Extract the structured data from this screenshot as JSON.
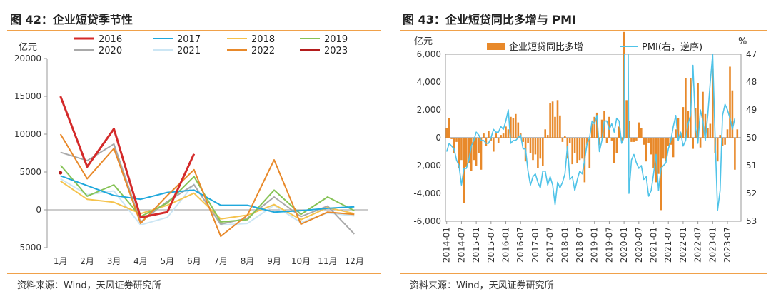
{
  "chart_data": [
    {
      "type": "line",
      "title": "图 42：企业短贷季节性",
      "ylabel": "亿元",
      "ylim": [
        -5000,
        20000
      ],
      "yticks": [
        -5000,
        0,
        5000,
        10000,
        15000,
        20000
      ],
      "categories": [
        "1月",
        "2月",
        "3月",
        "4月",
        "5月",
        "6月",
        "7月",
        "8月",
        "9月",
        "10月",
        "11月",
        "12月"
      ],
      "source": "资料来源：Wind，天风证券研究所",
      "series": [
        {
          "name": "2016",
          "color": "#d42a2a",
          "values": [
            15000,
            5700,
            10700,
            -1000,
            -300,
            7400,
            null,
            null,
            null,
            null,
            null,
            null
          ]
        },
        {
          "name": "2017",
          "color": "#1fa8dc",
          "values": [
            4500,
            3200,
            1900,
            1400,
            2300,
            2600,
            600,
            600,
            -300,
            -100,
            200,
            400
          ]
        },
        {
          "name": "2018",
          "color": "#f5c34d",
          "values": [
            3800,
            1400,
            1000,
            -500,
            600,
            2200,
            -1200,
            -700,
            700,
            -1300,
            300,
            -500
          ]
        },
        {
          "name": "2019",
          "color": "#86c356",
          "values": [
            5900,
            1800,
            3300,
            -900,
            900,
            4400,
            -1600,
            -1300,
            2600,
            -600,
            1700,
            -100
          ]
        },
        {
          "name": "2020",
          "color": "#a9a9a9",
          "values": [
            7600,
            6500,
            8700,
            -1600,
            1100,
            3300,
            -1900,
            -1100,
            1700,
            -900,
            500,
            -3200
          ]
        },
        {
          "name": "2021",
          "color": "#cce6f4",
          "values": [
            4100,
            2000,
            2500,
            -2000,
            -1000,
            3400,
            -2000,
            -1800,
            600,
            -1700,
            -400,
            -800
          ]
        },
        {
          "name": "2022",
          "color": "#e8892a",
          "values": [
            10000,
            4100,
            8100,
            -1800,
            1900,
            5300,
            -3500,
            -700,
            6600,
            -1900,
            -300,
            -600
          ]
        },
        {
          "name": "2023",
          "color": "#b31c1c",
          "values": [
            4900,
            null,
            null,
            null,
            null,
            null,
            null,
            null,
            null,
            null,
            null,
            null
          ]
        }
      ]
    },
    {
      "type": "bar+line",
      "title": "图 43：企业短贷同比多增与 PMI",
      "ylabel_left": "亿元",
      "ylabel_right": "%",
      "ylim_left": [
        -6000,
        6000
      ],
      "ylim_right": [
        53,
        47
      ],
      "yticks_left": [
        -6000,
        -4000,
        -2000,
        0,
        2000,
        4000,
        6000
      ],
      "yticks_right": [
        47,
        48,
        49,
        50,
        51,
        52,
        53
      ],
      "xticks": [
        "2014-01",
        "2014-07",
        "2015-01",
        "2015-07",
        "2016-01",
        "2016-07",
        "2017-01",
        "2017-07",
        "2018-01",
        "2018-07",
        "2019-01",
        "2019-07",
        "2020-01",
        "2020-07",
        "2021-01",
        "2021-07",
        "2022-01",
        "2022-07",
        "2023-01",
        "2023-07"
      ],
      "source": "资料来源：Wind，天风证券研究所",
      "bar_series": {
        "name": "企业短贷同比多增",
        "color": "#e8892a",
        "start": "2014-01",
        "values": [
          700,
          1400,
          -100,
          -1100,
          -300,
          -2200,
          -1600,
          -4700,
          -2100,
          -1800,
          -2400,
          -1600,
          -2000,
          -1100,
          -2300,
          300,
          -600,
          500,
          -200,
          -1000,
          300,
          -400,
          200,
          300,
          800,
          600,
          1500,
          1400,
          1700,
          1100,
          300,
          -300,
          -1700,
          -400,
          -1100,
          -1600,
          -1200,
          -2200,
          -1500,
          -2000,
          600,
          200,
          2500,
          2600,
          1500,
          2700,
          1600,
          -300,
          100,
          -1500,
          -400,
          -1900,
          -1100,
          -1800,
          -1600,
          -1500,
          -3200,
          -500,
          -2200,
          1000,
          1500,
          1800,
          -500,
          1300,
          1900,
          -400,
          1500,
          -200,
          -1800,
          -1100,
          800,
          -200,
          7600,
          2700,
          1200,
          -300,
          -300,
          -200,
          1100,
          700,
          -500,
          -1700,
          -400,
          -1200,
          -2200,
          -3200,
          -2600,
          -5200,
          -1500,
          -1700,
          -600,
          -500,
          -1400,
          600,
          1400,
          300,
          2200,
          4300,
          1900,
          4300,
          -800,
          2100,
          3900,
          -700,
          3300,
          1700,
          700,
          1000,
          5000,
          -1100,
          -1700,
          200,
          -600,
          -500,
          600,
          5100,
          3400,
          -2300,
          600
        ]
      },
      "line_series": {
        "name": "PMI(右，逆序)",
        "color": "#4fc3e8",
        "start": "2014-01",
        "values": [
          50.5,
          50.2,
          50.3,
          50.4,
          50.8,
          51.0,
          51.7,
          51.1,
          51.1,
          50.8,
          50.3,
          50.1,
          49.8,
          49.9,
          50.1,
          50.1,
          50.2,
          50.2,
          50.0,
          49.7,
          49.8,
          49.8,
          49.6,
          49.7,
          49.4,
          49.0,
          50.2,
          50.1,
          50.1,
          50.0,
          49.9,
          50.4,
          50.4,
          51.2,
          51.7,
          51.4,
          51.3,
          51.6,
          51.8,
          51.2,
          51.2,
          51.7,
          51.4,
          51.7,
          52.4,
          51.6,
          51.8,
          51.6,
          51.3,
          50.3,
          51.5,
          51.4,
          51.9,
          51.5,
          51.2,
          51.3,
          50.8,
          50.2,
          50.0,
          49.4,
          49.5,
          49.2,
          50.5,
          50.1,
          49.4,
          49.4,
          49.7,
          49.5,
          49.8,
          49.3,
          49.4,
          50.2,
          50.0,
          35.7,
          52.0,
          50.8,
          50.6,
          50.9,
          51.1,
          51.0,
          51.5,
          51.4,
          52.1,
          51.9,
          51.3,
          50.6,
          51.9,
          51.1,
          51.0,
          50.9,
          50.4,
          50.1,
          49.6,
          49.2,
          50.1,
          49.8,
          50.3,
          50.1,
          49.5,
          49.2,
          47.4,
          49.6,
          50.2,
          49.0,
          49.4,
          50.1,
          49.2,
          48.0,
          47.0,
          50.1,
          52.6,
          51.9,
          49.2,
          48.8,
          49.0,
          49.3,
          49.7,
          49.3
        ]
      }
    }
  ]
}
